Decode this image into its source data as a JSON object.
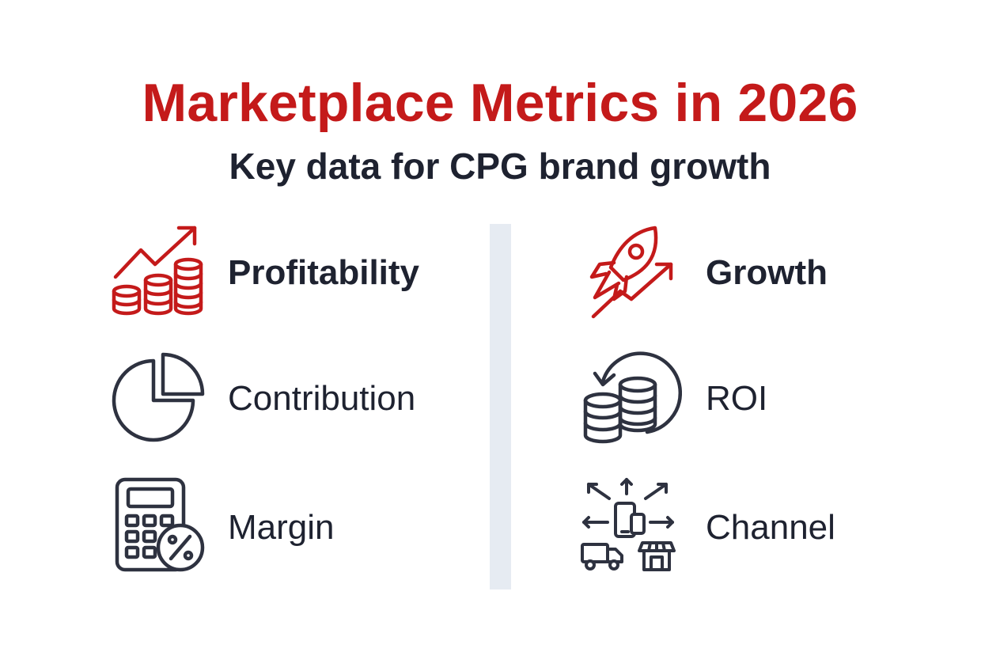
{
  "title": "Marketplace Metrics in 2026",
  "subtitle": "Key data for CPG brand growth",
  "colors": {
    "accent_red": "#c41a1a",
    "text_dark": "#1e2230",
    "icon_dark": "#2e3240",
    "divider": "#e6ebf2",
    "background": "#ffffff"
  },
  "left_column": [
    {
      "label": "Profitability",
      "icon": "trending-coins-icon",
      "emphasis": true
    },
    {
      "label": "Contribution",
      "icon": "pie-chart-icon",
      "emphasis": false
    },
    {
      "label": "Margin",
      "icon": "calculator-percent-icon",
      "emphasis": false
    }
  ],
  "right_column": [
    {
      "label": "Growth",
      "icon": "rocket-growth-icon",
      "emphasis": true
    },
    {
      "label": "ROI",
      "icon": "coins-return-icon",
      "emphasis": false
    },
    {
      "label": "Channel",
      "icon": "omnichannel-icon",
      "emphasis": false
    }
  ]
}
